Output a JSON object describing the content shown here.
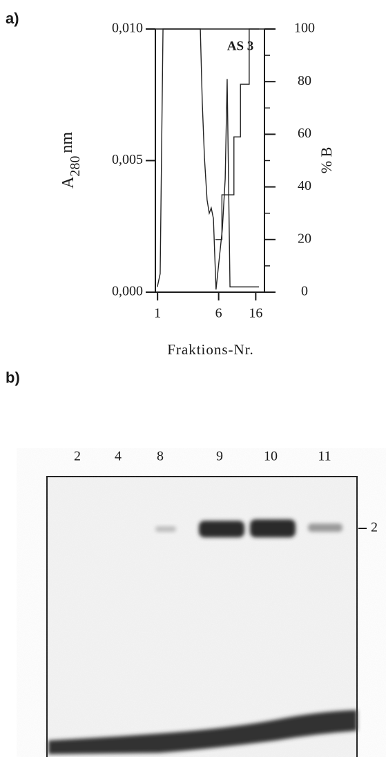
{
  "panel_a": {
    "label": "a)"
  },
  "chart_data": {
    "type": "line",
    "annotation": "AS 3",
    "y_label": {
      "main": "A",
      "sub": "280",
      "unit": "nm"
    },
    "y2_label": "% B",
    "x_label": "Fraktions-Nr.",
    "xlim": [
      0,
      50
    ],
    "xticks": [
      1,
      {
        "value": 29,
        "label": "6"
      },
      {
        "value": 46,
        "label": "16"
      }
    ],
    "ylim": [
      0,
      0.01
    ],
    "yticks": [
      {
        "value": 0,
        "label": "0,000"
      },
      {
        "value": 0.005,
        "label": "0,005"
      },
      {
        "value": 0.01,
        "label": "0,010"
      }
    ],
    "y2lim": [
      0,
      100
    ],
    "y2ticks": [
      0,
      20,
      40,
      60,
      80,
      100
    ],
    "y2minorticks": [
      10,
      30,
      50,
      70,
      90
    ],
    "series": [
      {
        "color": "#222222",
        "x": [
          0.9,
          2.2,
          3.5,
          20.6,
          21.5,
          22.5,
          23.7,
          24.7,
          25.6,
          26.6,
          27.8,
          30.7,
          32.0,
          32.9,
          33.5,
          34.2,
          47.5
        ],
        "values": [
          0.0002,
          0.0007,
          0.01,
          0.01,
          0.0072,
          0.0051,
          0.0035,
          0.003,
          0.0032,
          0.0028,
          0.0001,
          0.0024,
          0.0043,
          0.0081,
          0.0045,
          0.0002,
          0.0002
        ]
      },
      {
        "color": "#222222",
        "axis": "y2",
        "x": [
          27.5,
          30.5,
          30.5,
          36,
          36,
          39,
          39,
          43,
          43,
          47.5
        ],
        "values": [
          20,
          20,
          37,
          37,
          59,
          59,
          79,
          79,
          100,
          100
        ]
      }
    ]
  },
  "panel_b": {
    "label": "b)",
    "lanes": [
      "2",
      "4",
      "8",
      "9",
      "10",
      "11"
    ],
    "marker": "2"
  }
}
